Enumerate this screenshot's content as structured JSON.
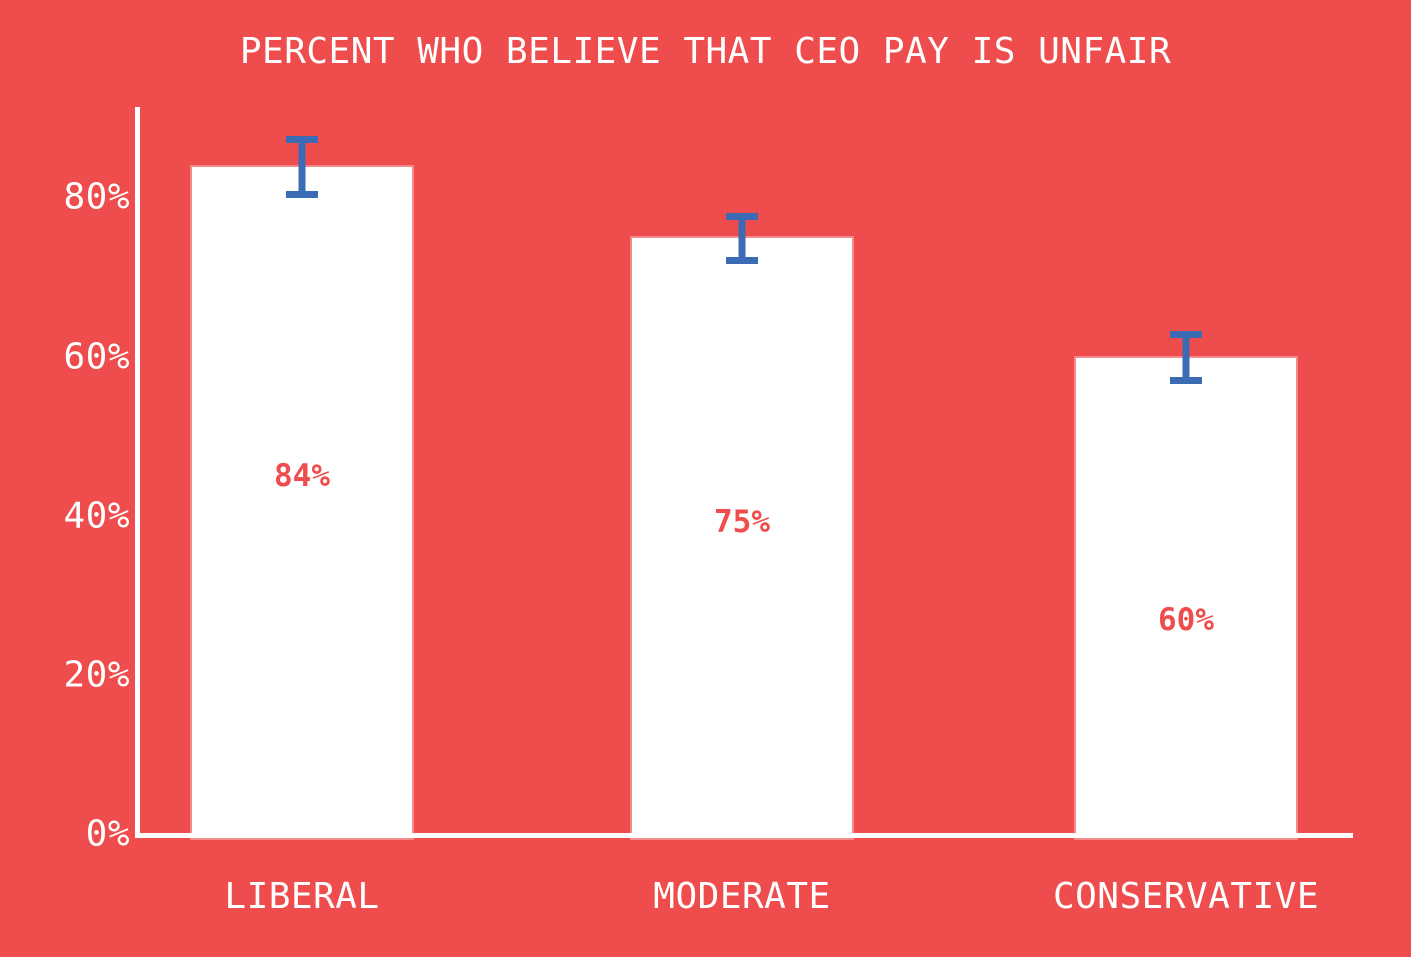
{
  "chart_data": {
    "type": "bar",
    "title": "PERCENT WHO BELIEVE THAT CEO PAY IS UNFAIR",
    "categories": [
      "LIBERAL",
      "MODERATE",
      "CONSERVATIVE"
    ],
    "values": [
      84,
      75,
      60
    ],
    "value_labels": [
      "84%",
      "75%",
      "60%"
    ],
    "errors": [
      3.9,
      3.2,
      3.3
    ],
    "yticks": [
      {
        "label": "0%",
        "value": 0
      },
      {
        "label": "20%",
        "value": 20
      },
      {
        "label": "40%",
        "value": 40
      },
      {
        "label": "60%",
        "value": 60
      },
      {
        "label": "80%",
        "value": 80
      }
    ],
    "ylim": [
      0,
      91.5
    ],
    "xlabel": "",
    "ylabel": "",
    "legend": "none",
    "grid": false,
    "colors": {
      "background": "#EF4D4D",
      "bar": "#FFFFFF",
      "error_bar": "#3B6BB4",
      "bar_value_label": "#EF4D4D",
      "axis": "#FFFFFF",
      "text": "#FFFFFF"
    }
  }
}
